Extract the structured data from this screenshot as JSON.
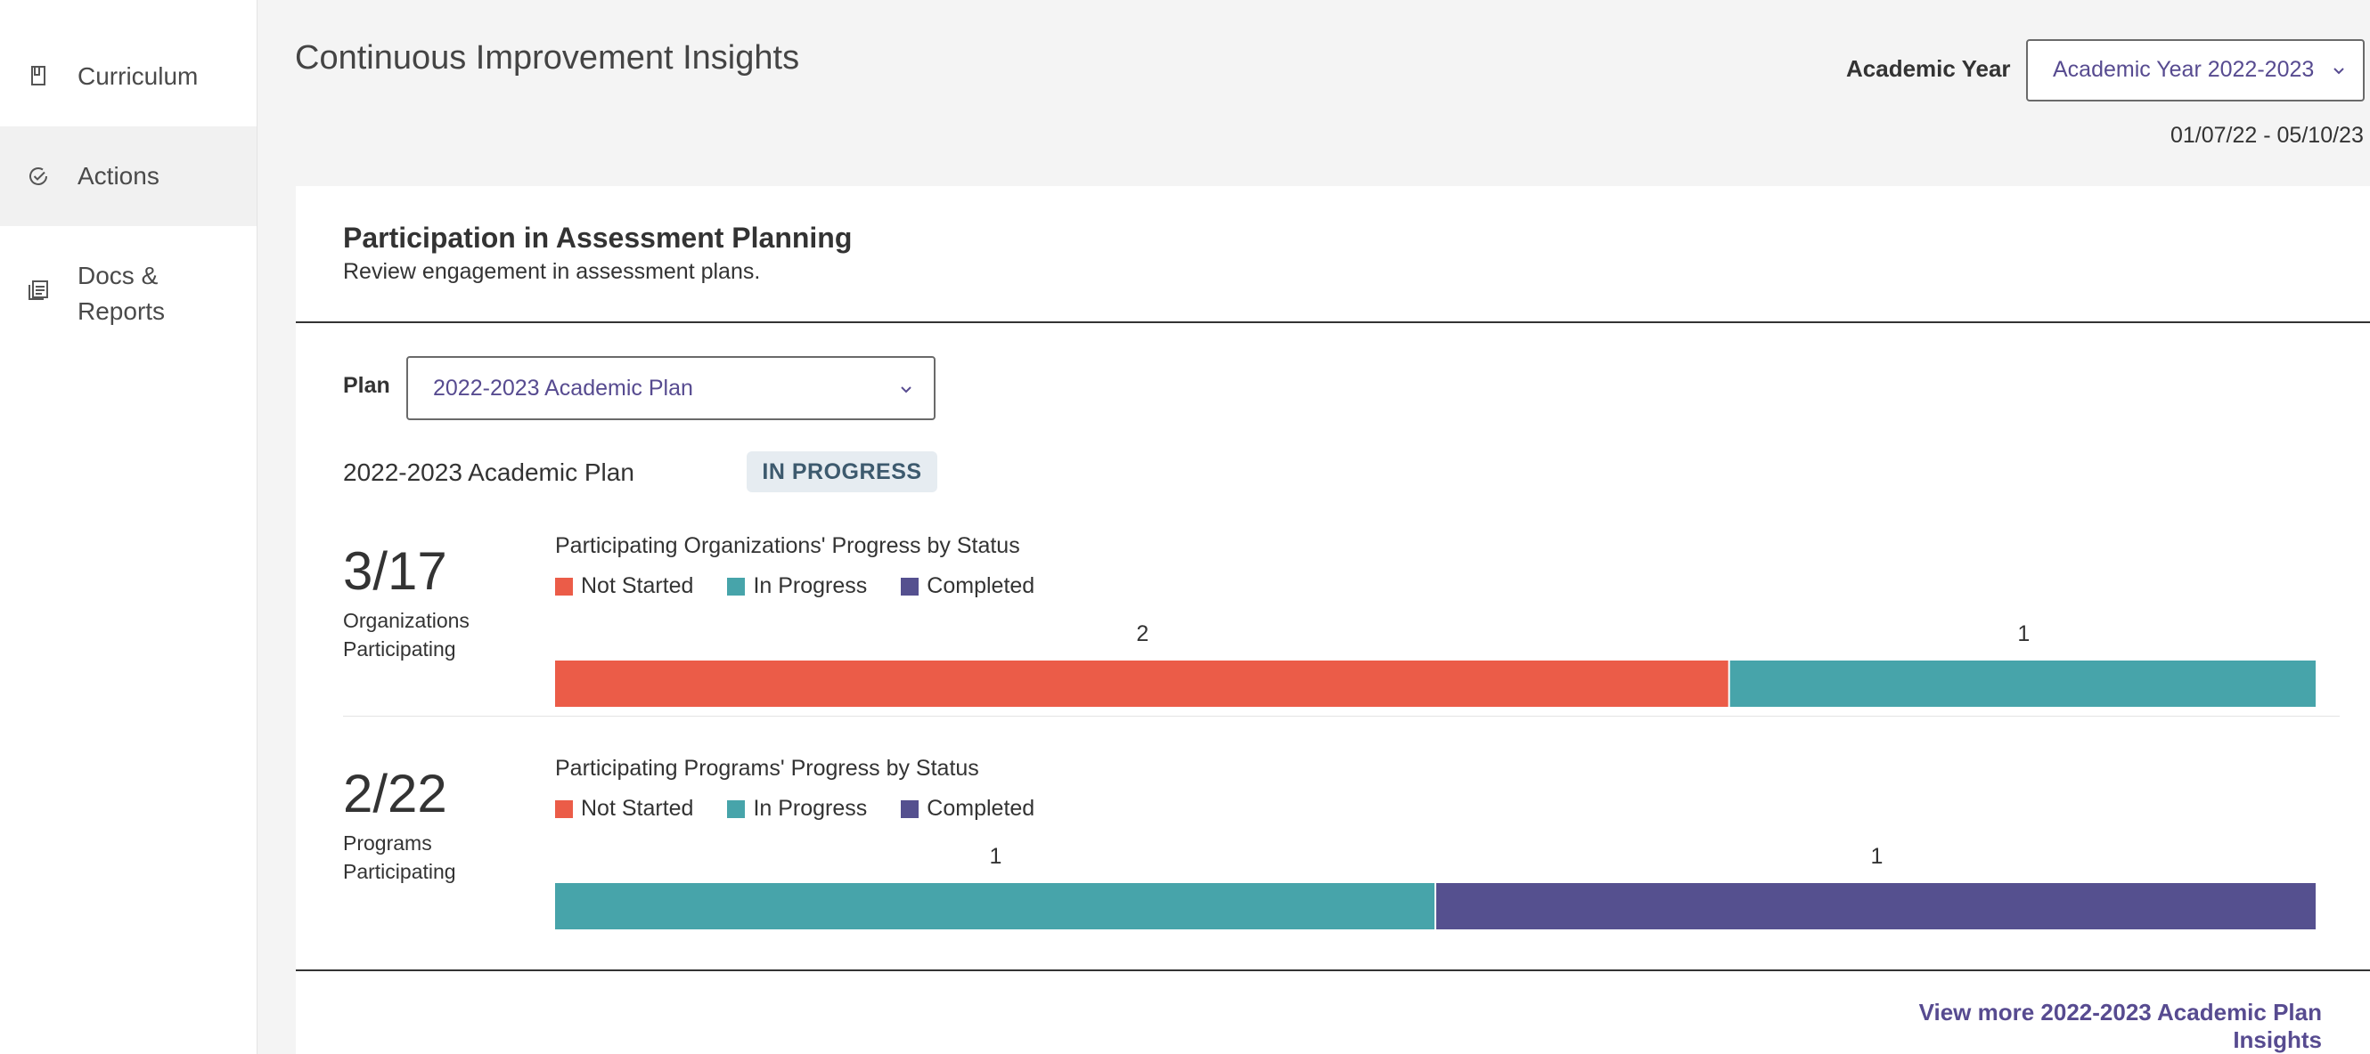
{
  "sidebar": {
    "items": [
      {
        "label": "Curriculum",
        "icon": "book-icon",
        "active": false
      },
      {
        "label": "Actions",
        "icon": "check-circle-icon",
        "active": true
      },
      {
        "label_line1": "Docs &",
        "label_line2": "Reports",
        "icon": "documents-icon",
        "active": false
      }
    ]
  },
  "header": {
    "title": "Continuous Improvement Insights",
    "academic_year_label": "Academic Year",
    "academic_year_value": "Academic Year 2022-2023",
    "date_range": "01/07/22 - 05/10/23"
  },
  "card": {
    "title": "Participation in Assessment Planning",
    "subtitle": "Review engagement in assessment plans.",
    "plan_label": "Plan",
    "plan_value": "2022-2023 Academic Plan",
    "plan_name": "2022-2023 Academic Plan",
    "status": "IN PROGRESS",
    "view_more": "View more 2022-2023 Academic Plan Insights"
  },
  "colors": {
    "not_started": "#eb5c48",
    "in_progress": "#47a4aa",
    "completed": "#55508f",
    "accent": "#574b90"
  },
  "legend": [
    "Not Started",
    "In Progress",
    "Completed"
  ],
  "chart_data": [
    {
      "type": "bar",
      "orientation": "horizontal-stacked",
      "title": "Participating Organizations' Progress by Status",
      "summary_value": "3/17",
      "summary_label_line1": "Organizations",
      "summary_label_line2": "Participating",
      "categories": [
        "Not Started",
        "In Progress",
        "Completed"
      ],
      "values": [
        2,
        1,
        0
      ]
    },
    {
      "type": "bar",
      "orientation": "horizontal-stacked",
      "title": "Participating Programs' Progress by Status",
      "summary_value": "2/22",
      "summary_label_line1": "Programs",
      "summary_label_line2": "Participating",
      "categories": [
        "Not Started",
        "In Progress",
        "Completed"
      ],
      "values": [
        0,
        1,
        1
      ]
    }
  ]
}
